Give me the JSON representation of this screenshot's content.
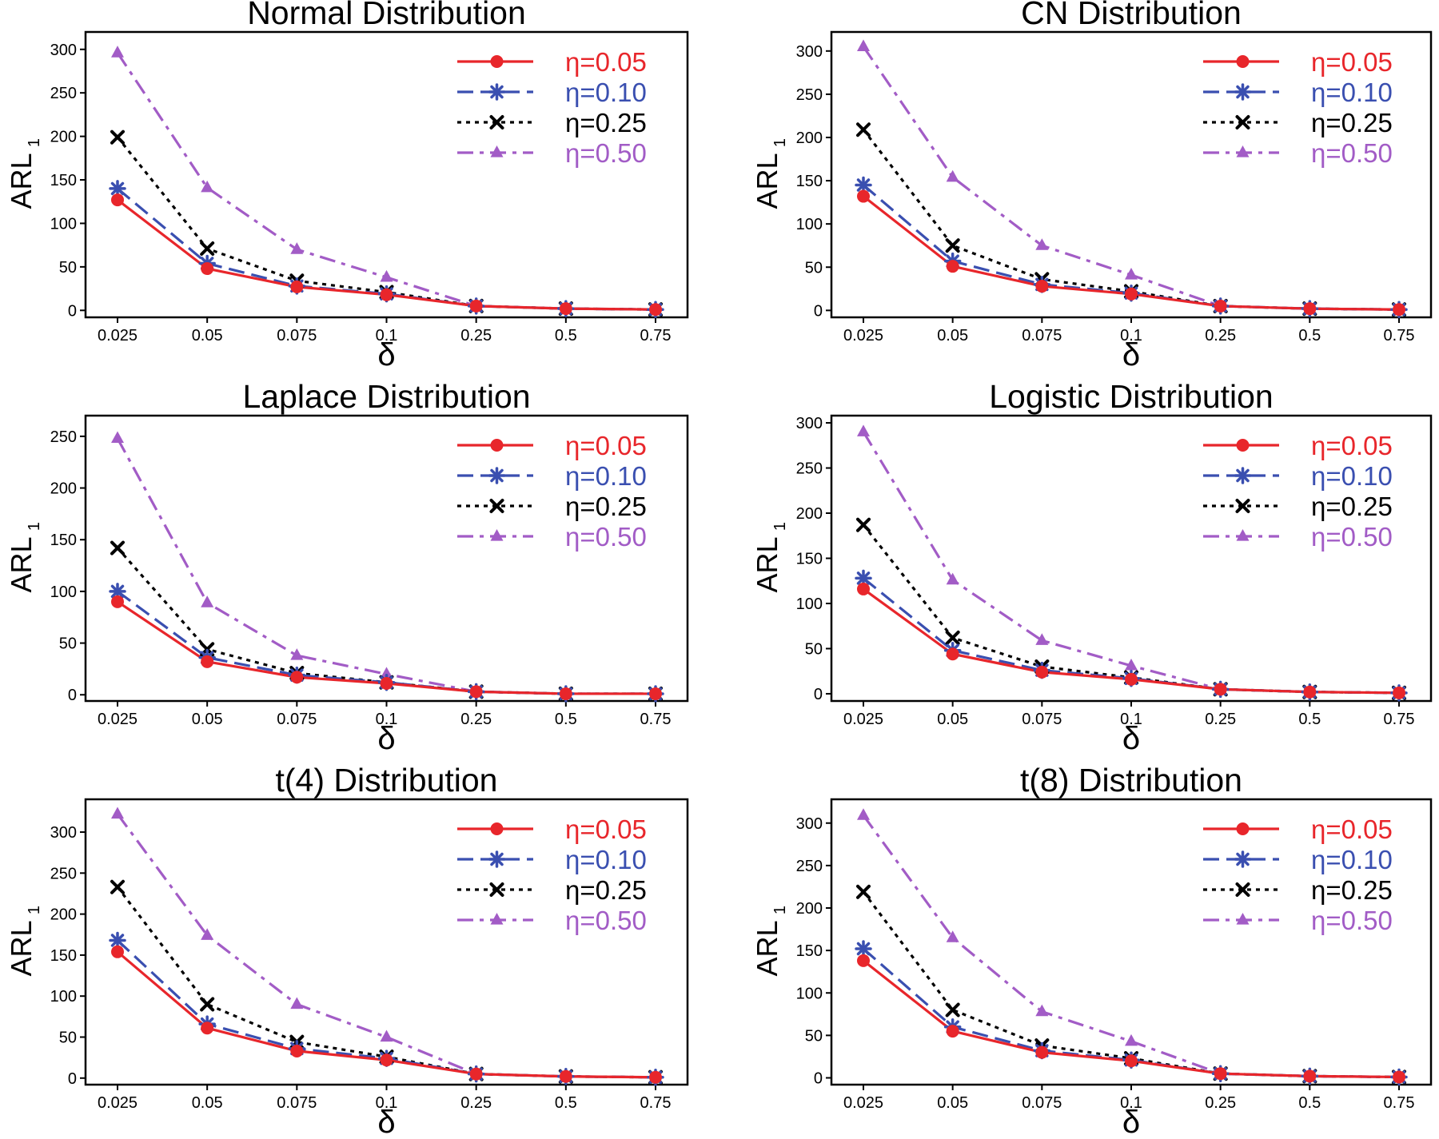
{
  "chart_data": [
    {
      "type": "line",
      "title": "Normal Distribution",
      "xlabel": "δ",
      "ylabel": "ARL",
      "ylabel_sub": "1",
      "categories": [
        "0.025",
        "0.05",
        "0.075",
        "0.1",
        "0.25",
        "0.5",
        "0.75"
      ],
      "yticks": [
        0,
        50,
        100,
        150,
        200,
        250,
        300
      ],
      "ylim": [
        -8,
        320
      ],
      "legend_position": "top-right",
      "series": [
        {
          "name": "η=0.05",
          "color": "#e8262b",
          "marker": "circle",
          "dash": "solid",
          "values": [
            127,
            48,
            27,
            18,
            5,
            2,
            1
          ]
        },
        {
          "name": "η=0.10",
          "color": "#3a4fb0",
          "marker": "asterisk",
          "dash": "dashed",
          "values": [
            140,
            54,
            28,
            19,
            5,
            2,
            1
          ]
        },
        {
          "name": "η=0.25",
          "color": "#000000",
          "marker": "cross",
          "dash": "dotted",
          "values": [
            199,
            71,
            34,
            21,
            5,
            2,
            1
          ]
        },
        {
          "name": "η=0.50",
          "color": "#a25cc6",
          "marker": "triangle",
          "dash": "dashdot",
          "values": [
            296,
            141,
            70,
            38,
            5,
            2,
            1
          ]
        }
      ]
    },
    {
      "type": "line",
      "title": "CN Distribution",
      "xlabel": "δ",
      "ylabel": "ARL",
      "ylabel_sub": "1",
      "categories": [
        "0.025",
        "0.05",
        "0.075",
        "0.1",
        "0.25",
        "0.5",
        "0.75"
      ],
      "yticks": [
        0,
        50,
        100,
        150,
        200,
        250,
        300
      ],
      "ylim": [
        -8,
        322
      ],
      "legend_position": "top-right",
      "series": [
        {
          "name": "η=0.05",
          "color": "#e8262b",
          "marker": "circle",
          "dash": "solid",
          "values": [
            132,
            51,
            28,
            19,
            5,
            2,
            1
          ]
        },
        {
          "name": "η=0.10",
          "color": "#3a4fb0",
          "marker": "asterisk",
          "dash": "dashed",
          "values": [
            145,
            57,
            30,
            20,
            5,
            2,
            1
          ]
        },
        {
          "name": "η=0.25",
          "color": "#000000",
          "marker": "cross",
          "dash": "dotted",
          "values": [
            209,
            75,
            36,
            22,
            5,
            2,
            1
          ]
        },
        {
          "name": "η=0.50",
          "color": "#a25cc6",
          "marker": "triangle",
          "dash": "dashdot",
          "values": [
            305,
            154,
            75,
            41,
            5,
            2,
            1
          ]
        }
      ]
    },
    {
      "type": "line",
      "title": "Laplace Distribution",
      "xlabel": "δ",
      "ylabel": "ARL",
      "ylabel_sub": "1",
      "categories": [
        "0.025",
        "0.05",
        "0.075",
        "0.1",
        "0.25",
        "0.5",
        "0.75"
      ],
      "yticks": [
        0,
        50,
        100,
        150,
        200,
        250
      ],
      "ylim": [
        -6,
        270
      ],
      "legend_position": "top-right",
      "series": [
        {
          "name": "η=0.05",
          "color": "#e8262b",
          "marker": "circle",
          "dash": "solid",
          "values": [
            90,
            32,
            17,
            11,
            3,
            1,
            1
          ]
        },
        {
          "name": "η=0.10",
          "color": "#3a4fb0",
          "marker": "asterisk",
          "dash": "dashed",
          "values": [
            100,
            36,
            19,
            12,
            3,
            1,
            1
          ]
        },
        {
          "name": "η=0.25",
          "color": "#000000",
          "marker": "cross",
          "dash": "dotted",
          "values": [
            142,
            44,
            21,
            12,
            3,
            1,
            1
          ]
        },
        {
          "name": "η=0.50",
          "color": "#a25cc6",
          "marker": "triangle",
          "dash": "dashdot",
          "values": [
            248,
            89,
            38,
            20,
            3,
            1,
            1
          ]
        }
      ]
    },
    {
      "type": "line",
      "title": "Logistic Distribution",
      "xlabel": "δ",
      "ylabel": "ARL",
      "ylabel_sub": "1",
      "categories": [
        "0.025",
        "0.05",
        "0.075",
        "0.1",
        "0.25",
        "0.5",
        "0.75"
      ],
      "yticks": [
        0,
        50,
        100,
        150,
        200,
        250,
        300
      ],
      "ylim": [
        -8,
        308
      ],
      "legend_position": "top-right",
      "series": [
        {
          "name": "η=0.05",
          "color": "#e8262b",
          "marker": "circle",
          "dash": "solid",
          "values": [
            116,
            44,
            24,
            16,
            5,
            2,
            1
          ]
        },
        {
          "name": "η=0.10",
          "color": "#3a4fb0",
          "marker": "asterisk",
          "dash": "dashed",
          "values": [
            128,
            48,
            26,
            17,
            5,
            2,
            1
          ]
        },
        {
          "name": "η=0.25",
          "color": "#000000",
          "marker": "cross",
          "dash": "dotted",
          "values": [
            187,
            62,
            30,
            18,
            5,
            2,
            1
          ]
        },
        {
          "name": "η=0.50",
          "color": "#a25cc6",
          "marker": "triangle",
          "dash": "dashdot",
          "values": [
            290,
            126,
            59,
            31,
            5,
            2,
            1
          ]
        }
      ]
    },
    {
      "type": "line",
      "title": "t(4) Distribution",
      "xlabel": "δ",
      "ylabel": "ARL",
      "ylabel_sub": "1",
      "categories": [
        "0.025",
        "0.05",
        "0.075",
        "0.1",
        "0.25",
        "0.5",
        "0.75"
      ],
      "yticks": [
        0,
        50,
        100,
        150,
        200,
        250,
        300
      ],
      "ylim": [
        -8,
        340
      ],
      "legend_position": "top-right",
      "series": [
        {
          "name": "η=0.05",
          "color": "#e8262b",
          "marker": "circle",
          "dash": "solid",
          "values": [
            154,
            61,
            33,
            22,
            5,
            2,
            1
          ]
        },
        {
          "name": "η=0.10",
          "color": "#3a4fb0",
          "marker": "asterisk",
          "dash": "dashed",
          "values": [
            168,
            66,
            36,
            24,
            5,
            2,
            1
          ]
        },
        {
          "name": "η=0.25",
          "color": "#000000",
          "marker": "cross",
          "dash": "dotted",
          "values": [
            233,
            90,
            44,
            26,
            5,
            2,
            1
          ]
        },
        {
          "name": "η=0.50",
          "color": "#a25cc6",
          "marker": "triangle",
          "dash": "dashdot",
          "values": [
            322,
            174,
            90,
            50,
            5,
            2,
            1
          ]
        }
      ]
    },
    {
      "type": "line",
      "title": "t(8) Distribution",
      "xlabel": "δ",
      "ylabel": "ARL",
      "ylabel_sub": "1",
      "categories": [
        "0.025",
        "0.05",
        "0.075",
        "0.1",
        "0.25",
        "0.5",
        "0.75"
      ],
      "yticks": [
        0,
        50,
        100,
        150,
        200,
        250,
        300
      ],
      "ylim": [
        -8,
        328
      ],
      "legend_position": "top-right",
      "series": [
        {
          "name": "η=0.05",
          "color": "#e8262b",
          "marker": "circle",
          "dash": "solid",
          "values": [
            138,
            55,
            30,
            20,
            5,
            2,
            1
          ]
        },
        {
          "name": "η=0.10",
          "color": "#3a4fb0",
          "marker": "asterisk",
          "dash": "dashed",
          "values": [
            152,
            60,
            32,
            21,
            5,
            2,
            1
          ]
        },
        {
          "name": "η=0.25",
          "color": "#000000",
          "marker": "cross",
          "dash": "dotted",
          "values": [
            219,
            80,
            38,
            23,
            5,
            2,
            1
          ]
        },
        {
          "name": "η=0.50",
          "color": "#a25cc6",
          "marker": "triangle",
          "dash": "dashdot",
          "values": [
            309,
            165,
            78,
            43,
            5,
            2,
            1
          ]
        }
      ]
    }
  ]
}
